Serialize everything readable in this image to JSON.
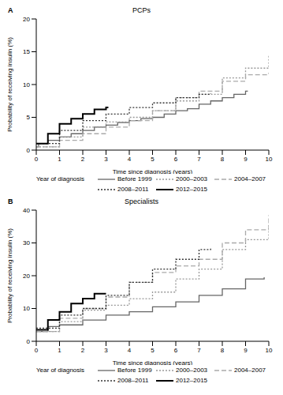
{
  "chart_data": [
    {
      "type": "line",
      "panel": "A",
      "title": "PCPs",
      "x_label": "Time since diagnosis (years)",
      "y_label": "Probability of receiving insulin (%)",
      "xlim": [
        0,
        10
      ],
      "xticks": [
        0,
        1,
        2,
        3,
        4,
        5,
        6,
        7,
        8,
        9,
        10
      ],
      "ylim": [
        0,
        20
      ],
      "yticks": [
        0,
        5,
        10,
        15,
        20
      ],
      "legend": "bottom",
      "legend_title": "Year of diagnosis",
      "series": [
        {
          "name": "Before 1999",
          "color": "#666666",
          "line_style": "solid",
          "x": [
            0,
            0.1,
            0.5,
            1,
            1.5,
            2,
            2.5,
            3,
            3.5,
            4,
            4.5,
            5,
            5.5,
            6,
            6.5,
            7,
            7.5,
            8,
            8.5,
            9,
            9.1
          ],
          "values": [
            0.5,
            1,
            1.5,
            2,
            2.5,
            3,
            3.5,
            3.8,
            4.2,
            4.5,
            4.8,
            5,
            5.5,
            6,
            6.3,
            7,
            7.5,
            8,
            8.5,
            9,
            9
          ]
        },
        {
          "name": "2000–2003",
          "color": "#999999",
          "line_style": "dotted",
          "x": [
            0,
            1,
            2,
            3,
            4,
            5,
            6,
            7,
            8,
            9,
            10
          ],
          "values": [
            0.5,
            2,
            3.5,
            4.3,
            5,
            6,
            7.5,
            8.5,
            11,
            12.5,
            14.5
          ]
        },
        {
          "name": "2004–2007",
          "color": "#aaaaaa",
          "line_style": "dashed",
          "x": [
            0,
            1,
            2,
            3,
            4,
            5,
            6,
            7,
            8,
            9,
            10
          ],
          "values": [
            0.5,
            1.5,
            2.5,
            3.5,
            4.5,
            6,
            8,
            9,
            10.5,
            11.5,
            11.8
          ]
        },
        {
          "name": "2008–2011",
          "color": "#333333",
          "line_style": "dotted",
          "x": [
            0,
            1,
            2,
            3,
            4,
            5,
            6,
            7,
            7.5
          ],
          "values": [
            1,
            3,
            4.5,
            5.5,
            6.5,
            7.2,
            8,
            8.5,
            8.6
          ]
        },
        {
          "name": "2012–2015",
          "color": "#000000",
          "line_style": "solid",
          "x": [
            0,
            0.5,
            1,
            1.5,
            2,
            2.5,
            3,
            3.1
          ],
          "values": [
            1,
            2.5,
            4,
            4.8,
            5.5,
            6.2,
            6.5,
            6.5
          ]
        }
      ]
    },
    {
      "type": "line",
      "panel": "B",
      "title": "Specialists",
      "x_label": "Time since diagnosis (years)",
      "y_label": "Probability of receiving insulin (%)",
      "xlim": [
        0,
        10
      ],
      "xticks": [
        0,
        1,
        2,
        3,
        4,
        5,
        6,
        7,
        8,
        9,
        10
      ],
      "ylim": [
        0,
        40
      ],
      "yticks": [
        0,
        10,
        20,
        30,
        40
      ],
      "legend": "bottom",
      "legend_title": "Year of diagnosis",
      "series": [
        {
          "name": "Before 1999",
          "color": "#666666",
          "line_style": "solid",
          "x": [
            0,
            0.5,
            1,
            2,
            3,
            4,
            5,
            6,
            7,
            8,
            9,
            9.8
          ],
          "values": [
            3,
            4.5,
            5,
            6.5,
            8,
            9,
            10.5,
            12,
            14,
            16,
            19,
            19.5
          ]
        },
        {
          "name": "2000–2003",
          "color": "#999999",
          "line_style": "dotted",
          "x": [
            0,
            1,
            2,
            3,
            4,
            5,
            6,
            7,
            8,
            9,
            10
          ],
          "values": [
            3,
            6,
            9.5,
            11,
            13,
            15,
            19,
            22,
            28,
            31,
            35.5
          ]
        },
        {
          "name": "2004–2007",
          "color": "#aaaaaa",
          "line_style": "dashed",
          "x": [
            0,
            1,
            2,
            3,
            4,
            5,
            6,
            7,
            8,
            9,
            10
          ],
          "values": [
            3,
            7,
            10,
            13.5,
            18,
            21,
            23,
            25,
            30,
            34,
            38.5
          ]
        },
        {
          "name": "2008–2011",
          "color": "#333333",
          "line_style": "dotted",
          "x": [
            0,
            1,
            2,
            3,
            4,
            5,
            6,
            7,
            7.5
          ],
          "values": [
            4,
            8,
            10,
            14,
            18,
            22,
            25,
            28,
            28.5
          ]
        },
        {
          "name": "2012–2015",
          "color": "#000000",
          "line_style": "solid",
          "x": [
            0,
            0.5,
            1,
            1.5,
            2,
            2.5,
            3
          ],
          "values": [
            3.5,
            6.5,
            9,
            11.5,
            13,
            14.5,
            14.5
          ]
        }
      ]
    }
  ]
}
